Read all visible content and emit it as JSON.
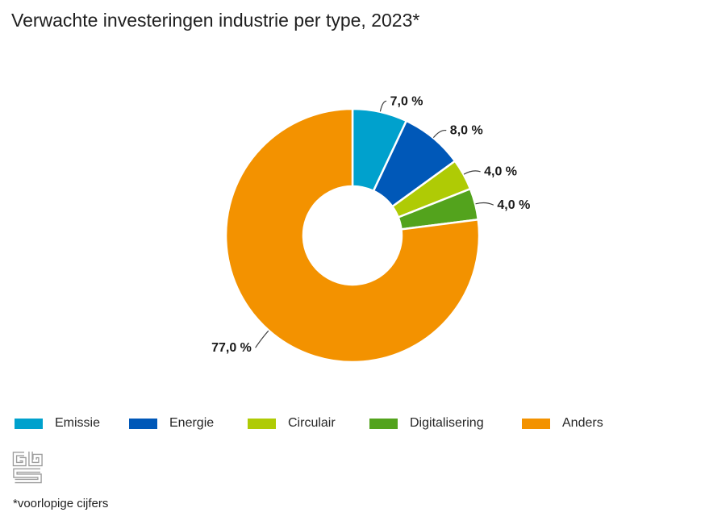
{
  "title": "Verwachte investeringen industrie per type, 2023*",
  "footnote": "*voorlopige cijfers",
  "logo": {
    "icon": "cbs-logo",
    "alt": "CBS"
  },
  "chart_data": {
    "type": "pie",
    "subtype": "donut",
    "title": "Verwachte investeringen industrie per type, 2023*",
    "categories": [
      "Emissie",
      "Energie",
      "Circulair",
      "Digitalisering",
      "Anders"
    ],
    "values": [
      7.0,
      8.0,
      4.0,
      4.0,
      77.0
    ],
    "labels": [
      "7,0 %",
      "8,0 %",
      "4,0 %",
      "4,0 %",
      "77,0 %"
    ],
    "colors": [
      "#00a1cd",
      "#0058b8",
      "#afcb05",
      "#53a31d",
      "#f39200"
    ],
    "unit": "%",
    "start_angle_deg": 0,
    "direction": "clockwise",
    "inner_radius_ratio": 0.39,
    "legend_position": "bottom",
    "grid": false
  }
}
